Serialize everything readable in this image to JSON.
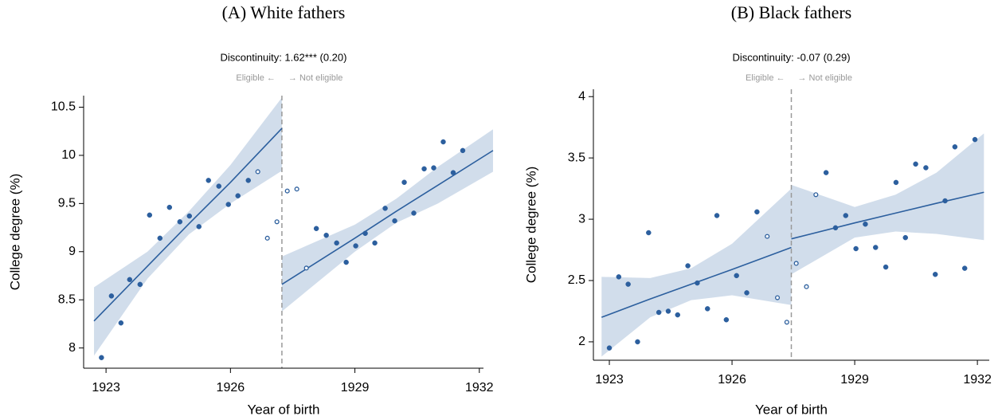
{
  "chart_data": [
    {
      "type": "scatter",
      "title": "(A) White fathers",
      "subtitle": "Discontinuity: 1.62*** (0.20)",
      "annotations": {
        "left": "Eligible ←",
        "right": "→ Not eligible"
      },
      "x_label": "Year of birth",
      "y_label": "College degree (%)",
      "color": "#2c5f9e",
      "band_color": "#c9d7e8",
      "xlim": [
        1922.46,
        1932.1
      ],
      "ylim": [
        7.79,
        10.62
      ],
      "xticks": [
        1923,
        1926,
        1929,
        1932
      ],
      "yticks": [
        8,
        8.5,
        9,
        9.5,
        10,
        10.5
      ],
      "cutoff": 1927.24,
      "x": [
        1922.89,
        1923.13,
        1923.36,
        1923.57,
        1923.82,
        1924.05,
        1924.3,
        1924.53,
        1924.78,
        1925.01,
        1925.24,
        1925.47,
        1925.72,
        1925.95,
        1926.18,
        1926.43,
        1926.66,
        1926.89,
        1927.12,
        1927.37,
        1927.6,
        1927.83,
        1928.07,
        1928.31,
        1928.56,
        1928.79,
        1929.02,
        1929.25,
        1929.48,
        1929.73,
        1929.96,
        1930.19,
        1930.42,
        1930.67,
        1930.9,
        1931.13,
        1931.37,
        1931.6
      ],
      "values": [
        7.9,
        8.54,
        8.26,
        8.71,
        8.66,
        9.38,
        9.14,
        9.46,
        9.31,
        9.37,
        9.26,
        9.74,
        9.68,
        9.49,
        9.58,
        9.74,
        9.83,
        9.14,
        9.31,
        9.63,
        9.65,
        8.83,
        9.24,
        9.17,
        9.09,
        8.89,
        9.06,
        9.19,
        9.09,
        9.45,
        9.32,
        9.72,
        9.4,
        9.86,
        9.87,
        10.14,
        9.82,
        10.05
      ],
      "hollow": [
        false,
        false,
        false,
        false,
        false,
        false,
        false,
        false,
        false,
        false,
        false,
        false,
        false,
        false,
        false,
        false,
        true,
        true,
        true,
        true,
        true,
        true,
        false,
        false,
        false,
        false,
        false,
        false,
        false,
        false,
        false,
        false,
        false,
        false,
        false,
        false,
        false,
        false
      ],
      "segments": [
        {
          "x": [
            1922.71,
            1924,
            1925,
            1926,
            1927.24
          ],
          "fit": [
            8.28,
            8.85,
            9.29,
            9.72,
            10.28
          ],
          "lower": [
            7.92,
            8.72,
            9.18,
            9.5,
            9.84
          ],
          "upper": [
            8.63,
            9.0,
            9.42,
            9.9,
            10.6
          ]
        },
        {
          "x": [
            1927.24,
            1929,
            1930,
            1931,
            1932.33
          ],
          "fit": [
            8.66,
            9.14,
            9.42,
            9.69,
            10.05
          ],
          "lower": [
            8.38,
            9.0,
            9.3,
            9.5,
            9.83
          ],
          "upper": [
            8.95,
            9.28,
            9.55,
            9.88,
            10.27
          ]
        }
      ]
    },
    {
      "type": "scatter",
      "title": "(B) Black fathers",
      "subtitle": "Discontinuity: -0.07 (0.29)",
      "annotations": {
        "left": "Eligible ←",
        "right": "→ Not eligible"
      },
      "x_label": "Year of birth",
      "y_label": "College degree (%)",
      "color": "#2c5f9e",
      "band_color": "#c9d7e8",
      "xlim": [
        1922.61,
        1932.29
      ],
      "ylim": [
        1.85,
        4.06
      ],
      "xticks": [
        1923,
        1926,
        1929,
        1932
      ],
      "yticks": [
        2,
        2.5,
        3,
        3.5,
        4
      ],
      "cutoff": 1927.45,
      "x": [
        1923.0,
        1923.23,
        1923.46,
        1923.69,
        1923.96,
        1924.21,
        1924.44,
        1924.67,
        1924.92,
        1925.15,
        1925.4,
        1925.63,
        1925.86,
        1926.11,
        1926.36,
        1926.61,
        1926.86,
        1927.11,
        1927.34,
        1927.57,
        1927.82,
        1928.05,
        1928.3,
        1928.53,
        1928.78,
        1929.03,
        1929.26,
        1929.51,
        1929.76,
        1930.01,
        1930.24,
        1930.49,
        1930.74,
        1930.97,
        1931.21,
        1931.45,
        1931.69,
        1931.94
      ],
      "values": [
        1.95,
        2.53,
        2.47,
        2.0,
        2.89,
        2.24,
        2.25,
        2.22,
        2.62,
        2.48,
        2.27,
        3.03,
        2.18,
        2.54,
        2.4,
        3.06,
        2.86,
        2.36,
        2.16,
        2.64,
        2.45,
        3.2,
        3.38,
        2.93,
        3.03,
        2.76,
        2.96,
        2.77,
        2.61,
        3.3,
        2.85,
        3.45,
        3.42,
        2.55,
        3.15,
        3.59,
        2.6,
        3.65
      ],
      "hollow": [
        false,
        false,
        false,
        false,
        false,
        false,
        false,
        false,
        false,
        false,
        false,
        false,
        false,
        false,
        false,
        false,
        true,
        true,
        true,
        true,
        true,
        true,
        false,
        false,
        false,
        false,
        false,
        false,
        false,
        false,
        false,
        false,
        false,
        false,
        false,
        false,
        false,
        false
      ],
      "segments": [
        {
          "x": [
            1922.81,
            1924,
            1925,
            1926,
            1927.45
          ],
          "fit": [
            2.2,
            2.35,
            2.47,
            2.59,
            2.77
          ],
          "lower": [
            1.88,
            2.2,
            2.34,
            2.38,
            2.3
          ],
          "upper": [
            2.53,
            2.52,
            2.6,
            2.8,
            3.25
          ]
        },
        {
          "x": [
            1927.45,
            1929,
            1930,
            1931,
            1932.16
          ],
          "fit": [
            2.84,
            2.97,
            3.05,
            3.13,
            3.22
          ],
          "lower": [
            2.55,
            2.85,
            2.9,
            2.88,
            2.83
          ],
          "upper": [
            3.28,
            3.1,
            3.2,
            3.38,
            3.7
          ]
        }
      ]
    }
  ]
}
